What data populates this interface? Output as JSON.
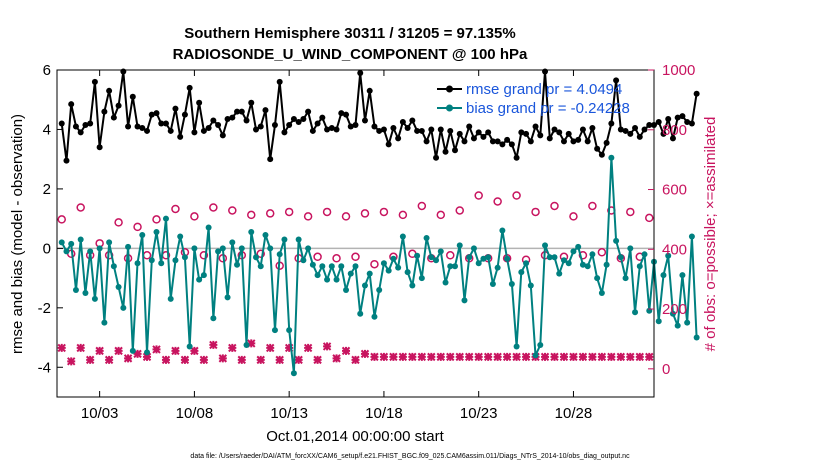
{
  "chart_data": {
    "type": "line",
    "title": "Southern Hemisphere 30311 / 31205 = 97.135%",
    "subtitle": "RADIOSONDE_U_WIND_COMPONENT @ 100 hPa",
    "xlabel": "Oct.01,2014 00:00:00 start",
    "ylabel": "rmse and bias (model - observation)",
    "ylabel_right": "# of obs: o=possible; ×=assimilated",
    "footer": "data file: /Users/raeder/DAI/ATM_forcXX/CAM6_setup/f.e21.FHIST_BGC.f09_025.CAM6assim.011/Diags_NTrS_2014-10/obs_diag_output.nc",
    "xlim": [
      0.75,
      32.25
    ],
    "ylim": [
      -5,
      6
    ],
    "ylim_right": [
      -94.3,
      1000
    ],
    "x_ticks": [
      3,
      8,
      13,
      18,
      23,
      28
    ],
    "x_tick_labels": [
      "10/03",
      "10/08",
      "10/13",
      "10/18",
      "10/23",
      "10/28"
    ],
    "y_ticks": [
      -4,
      -2,
      0,
      2,
      4,
      6
    ],
    "y_tick_labels": [
      "-4",
      "-2",
      "0",
      "2",
      "4",
      "6"
    ],
    "y_right_ticks": [
      0,
      200,
      400,
      600,
      800,
      1000
    ],
    "y_right_tick_labels": [
      "0",
      "200",
      "400",
      "600",
      "800",
      "1000"
    ],
    "colors": {
      "rmse": "#000000",
      "bias": "#008080",
      "obs": "#c8145f",
      "zero_line": "#b3b3b3",
      "legend_text": "#1a56db"
    },
    "legend": {
      "position": "top-right",
      "entries": [
        "rmse grand pr = 4.0494",
        "bias grand pr = -0.24228"
      ]
    },
    "series": [
      {
        "name": "rmse",
        "x_start": 1,
        "x_step": 0.25,
        "values": [
          4.2,
          2.95,
          4.85,
          4.1,
          3.9,
          4.15,
          4.2,
          5.6,
          3.4,
          4.6,
          5.3,
          4.4,
          4.8,
          5.95,
          4.1,
          5.1,
          4.1,
          4.05,
          3.95,
          4.5,
          4.55,
          4.2,
          4.2,
          3.95,
          4.7,
          3.75,
          4.5,
          5.4,
          3.9,
          4.9,
          3.95,
          4.05,
          4.3,
          4.15,
          3.8,
          4.35,
          4.4,
          4.6,
          4.6,
          4.3,
          4.9,
          4.0,
          4.1,
          4.65,
          3.0,
          4.15,
          5.6,
          3.9,
          4.15,
          4.35,
          4.25,
          4.35,
          4.6,
          3.95,
          4.2,
          4.4,
          4.0,
          4.05,
          4.0,
          4.55,
          4.5,
          4.1,
          4.15,
          5.9,
          4.3,
          5.3,
          4.1,
          3.95,
          4.0,
          3.5,
          4.05,
          3.7,
          4.25,
          4.05,
          4.3,
          3.95,
          3.95,
          3.6,
          4.0,
          3.05,
          4.0,
          3.25,
          3.95,
          3.3,
          3.85,
          3.6,
          4.1,
          3.7,
          3.9,
          3.75,
          3.9,
          3.6,
          3.6,
          3.5,
          3.65,
          3.5,
          3.05,
          3.9,
          3.85,
          3.6,
          4.1,
          3.8,
          5.95,
          3.7,
          4.0,
          3.9,
          3.6,
          3.85,
          3.6,
          3.65,
          4.0,
          3.6,
          4.05,
          3.35,
          3.15,
          3.55,
          4.2,
          5.65,
          4.0,
          3.95,
          3.85,
          4.05,
          3.75,
          4.0,
          4.15,
          4.15,
          4.25,
          3.85,
          4.35,
          3.7,
          4.4,
          4.45,
          4.25,
          4.2,
          5.2
        ]
      },
      {
        "name": "bias",
        "x_start": 1,
        "x_step": 0.25,
        "values": [
          0.2,
          -0.1,
          0.15,
          -1.4,
          0.3,
          -1.5,
          -0.1,
          -1.7,
          0.0,
          -2.5,
          0.2,
          -0.6,
          -1.3,
          -2.0,
          0.05,
          -3.45,
          -0.5,
          0.45,
          -3.5,
          -0.4,
          0.55,
          -0.5,
          1.0,
          -1.7,
          -0.4,
          0.4,
          -0.3,
          -3.3,
          0.0,
          -1.05,
          -0.9,
          0.7,
          -2.35,
          -0.1,
          0.0,
          -1.65,
          0.2,
          -0.55,
          0.0,
          -3.25,
          0.55,
          -0.3,
          -0.6,
          0.45,
          0.0,
          -2.75,
          -0.2,
          0.3,
          -2.75,
          -4.2,
          0.3,
          -0.4,
          0.0,
          -0.55,
          -0.9,
          -0.6,
          -1.05,
          -0.6,
          -1.05,
          -0.6,
          -1.4,
          -0.85,
          -0.6,
          -2.2,
          -1.25,
          -0.85,
          -2.3,
          -1.4,
          -0.5,
          -0.75,
          -0.35,
          -0.65,
          0.4,
          -0.8,
          -1.25,
          -0.25,
          -1.0,
          0.35,
          -0.3,
          -0.4,
          -0.1,
          -1.15,
          -0.6,
          -0.6,
          0.1,
          -1.75,
          -0.3,
          0.0,
          -0.5,
          -0.35,
          -0.3,
          -1.2,
          -0.65,
          0.6,
          -0.35,
          -1.2,
          -3.3,
          -0.8,
          -0.5,
          -1.25,
          -3.6,
          -3.25,
          0.1,
          -0.3,
          -0.3,
          -0.85,
          -0.4,
          -0.5,
          -0.1,
          0.05,
          -0.55,
          -0.6,
          -0.2,
          -1.0,
          -1.5,
          -0.55,
          3.05,
          0.25,
          -0.3,
          -1.0,
          0.0,
          -2.15,
          -0.6,
          -0.2,
          -2.1,
          -0.45,
          -2.45,
          -0.9,
          -0.25,
          -2.2,
          -2.6,
          -0.9,
          -2.5,
          0.4,
          -3.0
        ]
      },
      {
        "name": "obs_possible",
        "x_start": 1,
        "x_step": 0.5,
        "values": [
          500,
          385,
          540,
          380,
          420,
          380,
          490,
          370,
          475,
          380,
          500,
          380,
          535,
          390,
          510,
          380,
          540,
          370,
          530,
          380,
          515,
          385,
          520,
          345,
          525,
          370,
          510,
          375,
          525,
          370,
          510,
          375,
          520,
          350,
          525,
          375,
          515,
          385,
          545,
          370,
          515,
          380,
          530,
          370,
          580,
          370,
          560,
          370,
          580,
          365,
          525,
          380,
          545,
          375,
          510,
          380,
          545,
          390,
          530,
          370,
          525,
          375,
          505
        ]
      },
      {
        "name": "obs_assimilated",
        "x_start": 1,
        "x_step": 0.5,
        "values": [
          70,
          25,
          70,
          30,
          60,
          30,
          60,
          35,
          50,
          40,
          65,
          30,
          60,
          30,
          60,
          30,
          80,
          35,
          70,
          30,
          85,
          30,
          70,
          30,
          70,
          30,
          70,
          30,
          75,
          35,
          60,
          30,
          50,
          40,
          40,
          40,
          40,
          40,
          40,
          40,
          40,
          40,
          40,
          40,
          40,
          40,
          40,
          40,
          40,
          40,
          40,
          40,
          40,
          40,
          40,
          40,
          40,
          40,
          40,
          40,
          40,
          40,
          40
        ]
      }
    ]
  }
}
